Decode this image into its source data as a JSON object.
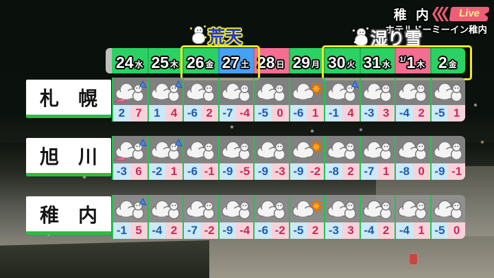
{
  "meta": {
    "location": "稚 内",
    "live_label": "Live",
    "camera_caption": "ホテルドーミーイン稚内"
  },
  "annotations": {
    "storm": "荒天",
    "wet_snow": "湿り雪"
  },
  "colors": {
    "date_green": "#2bd263",
    "date_blue": "#46a1f4",
    "date_pink": "#f56e92",
    "highlight_yellow": "#f2ea1f",
    "low_bg": "#cbe9f6",
    "low_text": "#1f59b0",
    "high_bg": "#f8d2da",
    "high_text": "#c72b56",
    "separator_green": "#25c14f",
    "city_underline_green": "#2abf3f",
    "live_pink": "#ee5e78",
    "live_text": "#ffef8a",
    "storm_blue": "#2236d6",
    "storm_outline": "#ece722"
  },
  "forecast": {
    "dates": [
      {
        "day": "24",
        "weekday": "水",
        "bg": "green"
      },
      {
        "day": "25",
        "weekday": "木",
        "bg": "green"
      },
      {
        "day": "26",
        "weekday": "金",
        "bg": "green"
      },
      {
        "day": "27",
        "weekday": "土",
        "bg": "blue"
      },
      {
        "day": "28",
        "weekday": "日",
        "bg": "pink"
      },
      {
        "day": "29",
        "weekday": "月",
        "bg": "green"
      },
      {
        "day": "30",
        "weekday": "火",
        "bg": "green"
      },
      {
        "day": "31",
        "weekday": "水",
        "bg": "green"
      },
      {
        "day": "1",
        "prefix": "1/",
        "weekday": "木",
        "bg": "pink"
      },
      {
        "day": "2",
        "weekday": "金",
        "bg": "green"
      }
    ],
    "rows": [
      {
        "city": "札　幌",
        "cells": [
          {
            "icon": "snow-storm",
            "low": 2,
            "high": 7
          },
          {
            "icon": "snow-windy",
            "low": 1,
            "high": 4
          },
          {
            "icon": "snow",
            "low": -6,
            "high": 2
          },
          {
            "icon": "snow",
            "low": -7,
            "high": -4
          },
          {
            "icon": "snow",
            "low": -5,
            "high": 0
          },
          {
            "icon": "partly-sunny",
            "low": -6,
            "high": 1
          },
          {
            "icon": "snow-windy",
            "low": -1,
            "high": 4
          },
          {
            "icon": "snow",
            "low": -3,
            "high": 3
          },
          {
            "icon": "snow",
            "low": -4,
            "high": 2
          },
          {
            "icon": "snow",
            "low": -5,
            "high": 1
          }
        ]
      },
      {
        "city": "旭　川",
        "cells": [
          {
            "icon": "snow-storm",
            "low": -3,
            "high": 6
          },
          {
            "icon": "snow-windy",
            "low": -2,
            "high": 1
          },
          {
            "icon": "snow",
            "low": -6,
            "high": -1
          },
          {
            "icon": "snow",
            "low": -9,
            "high": -5
          },
          {
            "icon": "snow",
            "low": -9,
            "high": -3
          },
          {
            "icon": "partly-sunny",
            "low": -9,
            "high": -2
          },
          {
            "icon": "snow",
            "low": -8,
            "high": 2
          },
          {
            "icon": "snow",
            "low": -7,
            "high": 1
          },
          {
            "icon": "snow",
            "low": -8,
            "high": 0
          },
          {
            "icon": "snow",
            "low": -9,
            "high": -1
          }
        ]
      },
      {
        "city": "稚　内",
        "cells": [
          {
            "icon": "snow-windy",
            "low": -1,
            "high": 5
          },
          {
            "icon": "snow",
            "low": -4,
            "high": 2
          },
          {
            "icon": "snow",
            "low": -7,
            "high": -2
          },
          {
            "icon": "snow",
            "low": -9,
            "high": -4
          },
          {
            "icon": "snow",
            "low": -6,
            "high": -2
          },
          {
            "icon": "partly-sunny",
            "low": -5,
            "high": 2
          },
          {
            "icon": "snow",
            "low": -3,
            "high": 3
          },
          {
            "icon": "snow",
            "low": -4,
            "high": 2
          },
          {
            "icon": "snow",
            "low": -4,
            "high": 1
          },
          {
            "icon": "snow",
            "low": -5,
            "high": 0
          }
        ]
      }
    ]
  },
  "chart_data": {
    "type": "table",
    "columns": [
      "24水",
      "25木",
      "26金",
      "27土",
      "28日",
      "29月",
      "30火",
      "31水",
      "1/1木",
      "2金"
    ],
    "rows": [
      {
        "city": "札幌",
        "icons": [
          "snow-storm",
          "snow-windy",
          "snow",
          "snow",
          "snow",
          "partly-sunny",
          "snow-windy",
          "snow",
          "snow",
          "snow"
        ],
        "low": [
          2,
          1,
          -6,
          -7,
          -5,
          -6,
          -1,
          -3,
          -4,
          -5
        ],
        "high": [
          7,
          4,
          2,
          -4,
          0,
          1,
          4,
          3,
          2,
          1
        ]
      },
      {
        "city": "旭川",
        "icons": [
          "snow-storm",
          "snow-windy",
          "snow",
          "snow",
          "snow",
          "partly-sunny",
          "snow",
          "snow",
          "snow",
          "snow"
        ],
        "low": [
          -3,
          -2,
          -6,
          -9,
          -9,
          -9,
          -8,
          -7,
          -8,
          -9
        ],
        "high": [
          6,
          1,
          -1,
          -5,
          -3,
          -2,
          2,
          1,
          0,
          -1
        ]
      },
      {
        "city": "稚内",
        "icons": [
          "snow-windy",
          "snow",
          "snow",
          "snow",
          "snow",
          "partly-sunny",
          "snow",
          "snow",
          "snow",
          "snow"
        ],
        "low": [
          -1,
          -4,
          -7,
          -9,
          -6,
          -5,
          -3,
          -4,
          -4,
          -5
        ],
        "high": [
          5,
          2,
          -2,
          -4,
          -2,
          2,
          3,
          2,
          1,
          0
        ]
      }
    ],
    "annotations": [
      {
        "label": "荒天",
        "applies_to": [
          "26金",
          "27土"
        ]
      },
      {
        "label": "湿り雪",
        "applies_to": [
          "30火",
          "31水",
          "1/1木",
          "2金"
        ]
      }
    ],
    "legend": "low temperature (blue) / high temperature (red) per day"
  }
}
